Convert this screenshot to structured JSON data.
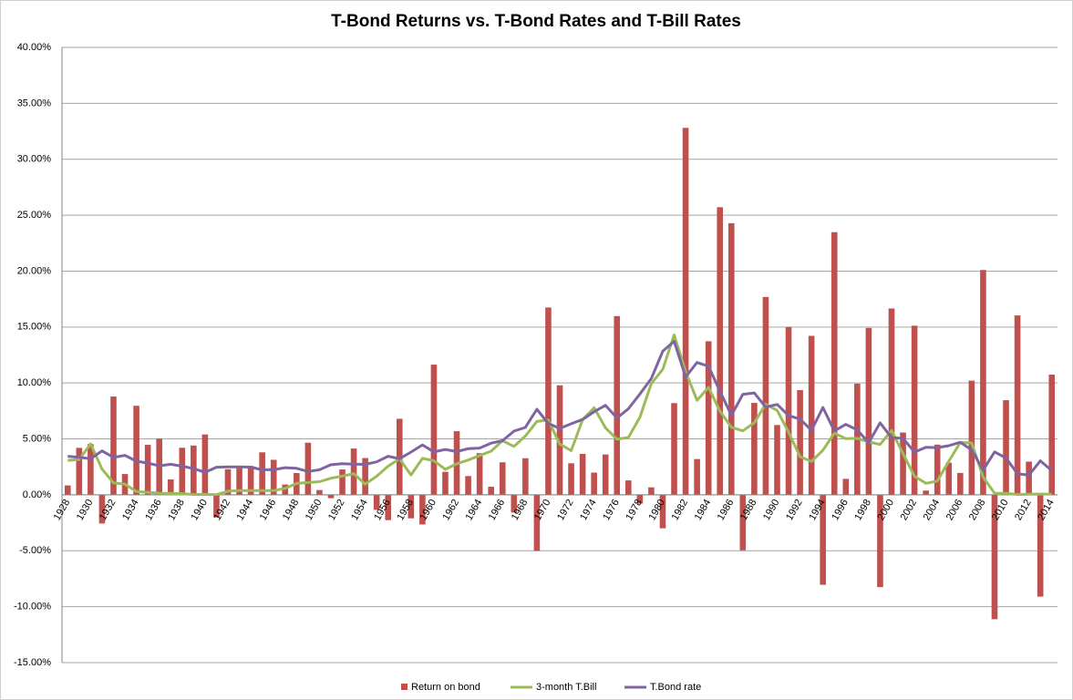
{
  "chart_data": {
    "type": "bar_line",
    "title": "T-Bond Returns vs. T-Bond Rates and T-Bill Rates",
    "categories": [
      "1928",
      null,
      "1930",
      null,
      "1932",
      null,
      "1934",
      null,
      "1936",
      null,
      "1938",
      null,
      "1940",
      null,
      "1942",
      null,
      "1944",
      null,
      "1946",
      null,
      "1948",
      null,
      "1950",
      null,
      "1952",
      null,
      "1954",
      null,
      "1956",
      null,
      "1958",
      null,
      "1960",
      null,
      "1962",
      null,
      "1964",
      null,
      "1966",
      null,
      "1968",
      null,
      "1970",
      null,
      "1972",
      null,
      "1974",
      null,
      "1976",
      null,
      "1978",
      null,
      "1980",
      null,
      "1982",
      null,
      "1984",
      null,
      "1986",
      null,
      "1988",
      null,
      "1990",
      null,
      "1992",
      null,
      "1994",
      null,
      "1996",
      null,
      "1998",
      null,
      "2000",
      null,
      "2002",
      null,
      "2004",
      null,
      "2006",
      null,
      "2008",
      null,
      "2010",
      null,
      "2012",
      null,
      "2014"
    ],
    "series": [
      {
        "name": "Return on bond",
        "kind": "bar",
        "color": "#c0504d",
        "values": [
          0.84,
          4.2,
          4.54,
          -2.56,
          8.79,
          1.86,
          7.96,
          4.47,
          5.02,
          1.38,
          4.21,
          4.41,
          5.4,
          -2.02,
          2.29,
          2.49,
          2.58,
          3.8,
          3.13,
          0.92,
          1.95,
          4.66,
          0.43,
          -0.3,
          2.27,
          4.14,
          3.29,
          -1.34,
          -2.26,
          6.8,
          -2.1,
          -2.65,
          11.64,
          2.06,
          5.69,
          1.68,
          3.73,
          0.72,
          2.91,
          -1.58,
          3.27,
          -5.01,
          16.75,
          9.79,
          2.82,
          3.66,
          1.99,
          3.61,
          15.98,
          1.29,
          -0.78,
          0.67,
          -2.99,
          8.2,
          32.81,
          3.2,
          13.73,
          25.71,
          24.28,
          -4.96,
          8.22,
          17.69,
          6.24,
          15.0,
          9.36,
          14.21,
          -8.04,
          23.48,
          1.43,
          9.94,
          14.92,
          -8.25,
          16.66,
          5.57,
          15.12,
          0.38,
          4.49,
          2.87,
          1.96,
          10.21,
          20.1,
          -11.12,
          8.46,
          16.04,
          2.97,
          -9.1,
          10.75
        ]
      },
      {
        "name": "3-month T.Bill",
        "kind": "line",
        "color": "#9bbb59",
        "values": [
          3.08,
          3.16,
          4.55,
          2.31,
          1.07,
          0.96,
          0.3,
          0.23,
          0.15,
          0.12,
          0.11,
          0.03,
          0.04,
          0.02,
          0.33,
          0.38,
          0.38,
          0.38,
          0.38,
          0.57,
          1.02,
          1.1,
          1.17,
          1.48,
          1.67,
          1.89,
          0.96,
          1.66,
          2.56,
          3.23,
          1.78,
          3.26,
          3.05,
          2.27,
          2.78,
          3.11,
          3.51,
          3.9,
          4.84,
          4.33,
          5.26,
          6.56,
          6.69,
          4.54,
          3.95,
          6.73,
          7.78,
          5.99,
          4.97,
          5.13,
          6.93,
          9.94,
          11.22,
          14.3,
          11.01,
          8.45,
          9.61,
          7.49,
          6.04,
          5.72,
          6.45,
          8.11,
          7.55,
          5.61,
          3.41,
          2.98,
          3.99,
          5.52,
          5.02,
          5.05,
          4.73,
          4.51,
          5.76,
          3.67,
          1.66,
          1.03,
          1.23,
          3.01,
          4.68,
          4.64,
          1.59,
          0.14,
          0.13,
          0.03,
          0.05,
          0.07,
          0.05
        ]
      },
      {
        "name": "T.Bond rate",
        "kind": "line",
        "color": "#8064a2",
        "values": [
          3.45,
          3.36,
          3.22,
          3.93,
          3.35,
          3.53,
          3.01,
          2.84,
          2.59,
          2.73,
          2.56,
          2.35,
          2.01,
          2.47,
          2.49,
          2.49,
          2.48,
          2.23,
          2.25,
          2.43,
          2.37,
          2.09,
          2.24,
          2.69,
          2.79,
          2.74,
          2.72,
          2.95,
          3.45,
          3.23,
          3.82,
          4.47,
          3.84,
          4.06,
          3.86,
          4.13,
          4.18,
          4.62,
          4.84,
          5.7,
          6.03,
          7.65,
          6.39,
          5.93,
          6.36,
          6.74,
          7.43,
          8.0,
          6.87,
          7.69,
          9.01,
          10.39,
          12.84,
          13.72,
          10.54,
          11.83,
          11.5,
          9.26,
          7.11,
          8.99,
          9.11,
          7.84,
          8.08,
          7.09,
          6.77,
          5.77,
          7.81,
          5.71,
          6.3,
          5.81,
          4.65,
          6.44,
          5.11,
          5.05,
          3.82,
          4.25,
          4.22,
          4.39,
          4.7,
          4.02,
          2.21,
          3.84,
          3.29,
          1.88,
          1.76,
          3.04,
          2.17
        ]
      }
    ],
    "ylim": [
      -15,
      40
    ],
    "yticks": [
      {
        "value": -15,
        "label": "-15.00%"
      },
      {
        "value": -10,
        "label": "-10.00%"
      },
      {
        "value": -5,
        "label": "-5.00%"
      },
      {
        "value": 0,
        "label": "0.00%"
      },
      {
        "value": 5,
        "label": "5.00%"
      },
      {
        "value": 10,
        "label": "10.00%"
      },
      {
        "value": 15,
        "label": "15.00%"
      },
      {
        "value": 20,
        "label": "20.00%"
      },
      {
        "value": 25,
        "label": "25.00%"
      },
      {
        "value": 30,
        "label": "30.00%"
      },
      {
        "value": 35,
        "label": "35.00%"
      },
      {
        "value": 40,
        "label": "40.00%"
      }
    ],
    "grid": true,
    "legend": "bottom"
  }
}
